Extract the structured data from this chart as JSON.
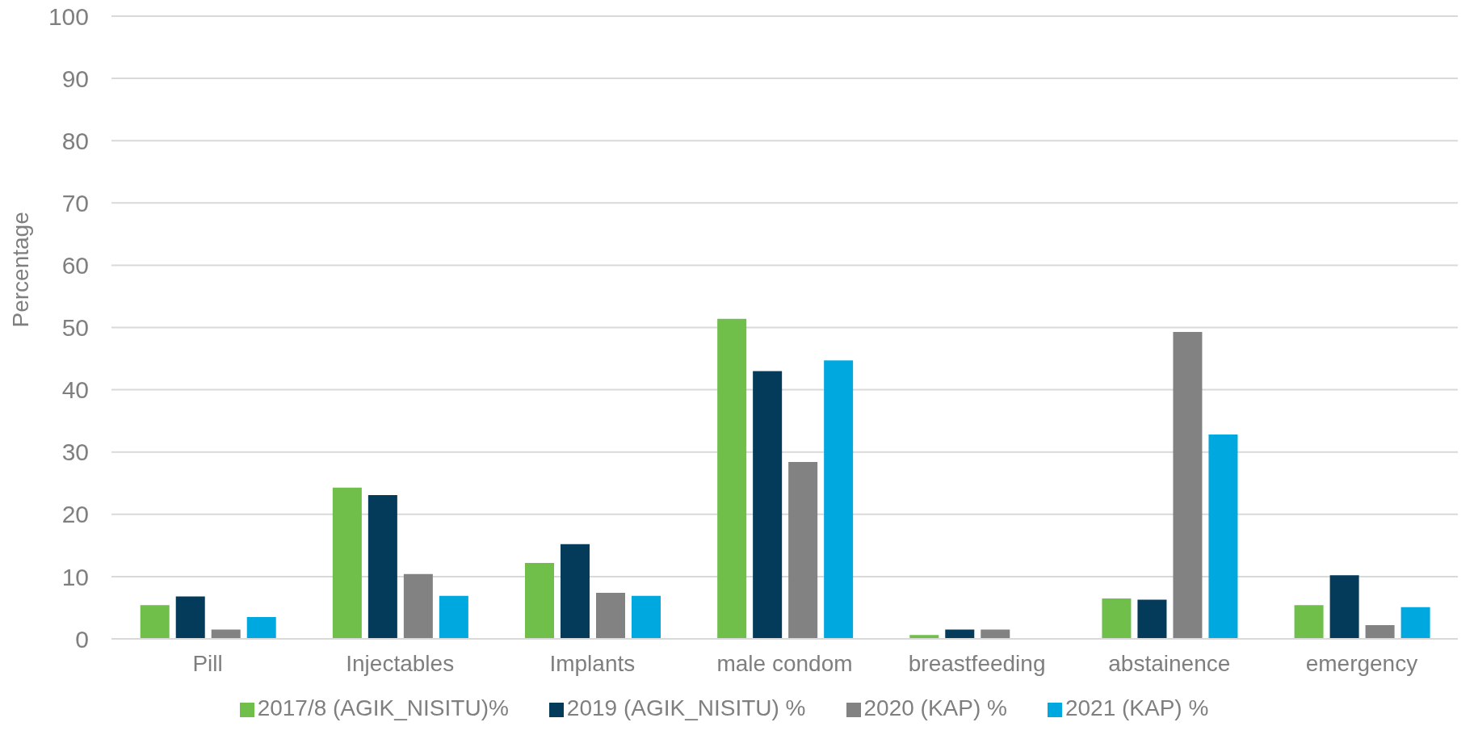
{
  "chart_data": {
    "type": "bar",
    "ylabel": "Percentage",
    "categories": [
      "Pill",
      "Injectables",
      "Implants",
      "male condom",
      "breastfeeding",
      "abstainence",
      "emergency"
    ],
    "series": [
      {
        "name": "2017/8 (AGIK_NISITU)%",
        "color": "#70bf4b",
        "values": [
          5.4,
          24.3,
          12.2,
          51.4,
          0.6,
          6.5,
          5.4
        ]
      },
      {
        "name": "2019 (AGIK_NISITU) %",
        "color": "#043a5a",
        "values": [
          6.8,
          23.1,
          15.2,
          43.0,
          1.5,
          6.3,
          10.2
        ]
      },
      {
        "name": "2020 (KAP) %",
        "color": "#828282",
        "values": [
          1.5,
          10.4,
          7.4,
          28.4,
          1.5,
          49.3,
          2.2
        ]
      },
      {
        "name": "2021 (KAP) %",
        "color": "#00a8e0",
        "values": [
          3.5,
          6.9,
          6.9,
          44.7,
          null,
          32.8,
          5.1
        ]
      }
    ],
    "ylim": [
      0,
      100
    ],
    "yticks": [
      0,
      10,
      20,
      30,
      40,
      50,
      60,
      70,
      80,
      90,
      100
    ],
    "grid": "y",
    "legend": "bottom"
  }
}
